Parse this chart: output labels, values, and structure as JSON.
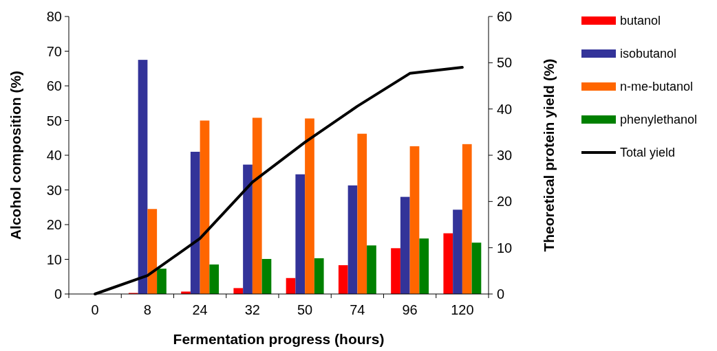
{
  "chart_data": {
    "type": "bar",
    "xlabel": "Fermentation progress (hours)",
    "ylabel": "Alcohol composition (%)",
    "y2label": "Theoretical protein yield (%)",
    "categories": [
      "0",
      "8",
      "24",
      "32",
      "50",
      "74",
      "96",
      "120"
    ],
    "series": [
      {
        "name": "butanol",
        "color": "#ff0000",
        "values": [
          0,
          0.3,
          0.7,
          1.7,
          4.6,
          8.3,
          13.2,
          17.5
        ]
      },
      {
        "name": "isobutanol",
        "color": "#333399",
        "values": [
          0,
          67.5,
          41,
          37.3,
          34.5,
          31.3,
          28,
          24.3
        ]
      },
      {
        "name": "n-me-butanol",
        "color": "#ff6600",
        "values": [
          0,
          24.5,
          50,
          50.8,
          50.6,
          46.2,
          42.6,
          43.2
        ]
      },
      {
        "name": "phenylethanol",
        "color": "#008000",
        "values": [
          0,
          7.3,
          8.5,
          10.1,
          10.3,
          14,
          16,
          14.8
        ]
      },
      {
        "name": "Total yield",
        "type": "line",
        "axis": "y2",
        "color": "#000000",
        "values": [
          0,
          4,
          12,
          24.2,
          32.8,
          40.6,
          47.7,
          49
        ]
      }
    ],
    "ylim": [
      0,
      80
    ],
    "yticks": [
      0,
      10,
      20,
      30,
      40,
      50,
      60,
      70,
      80
    ],
    "y2lim": [
      0,
      60
    ],
    "y2ticks": [
      0,
      10,
      20,
      30,
      40,
      50,
      60
    ],
    "legend": "right",
    "grid": false,
    "marker": "none"
  }
}
